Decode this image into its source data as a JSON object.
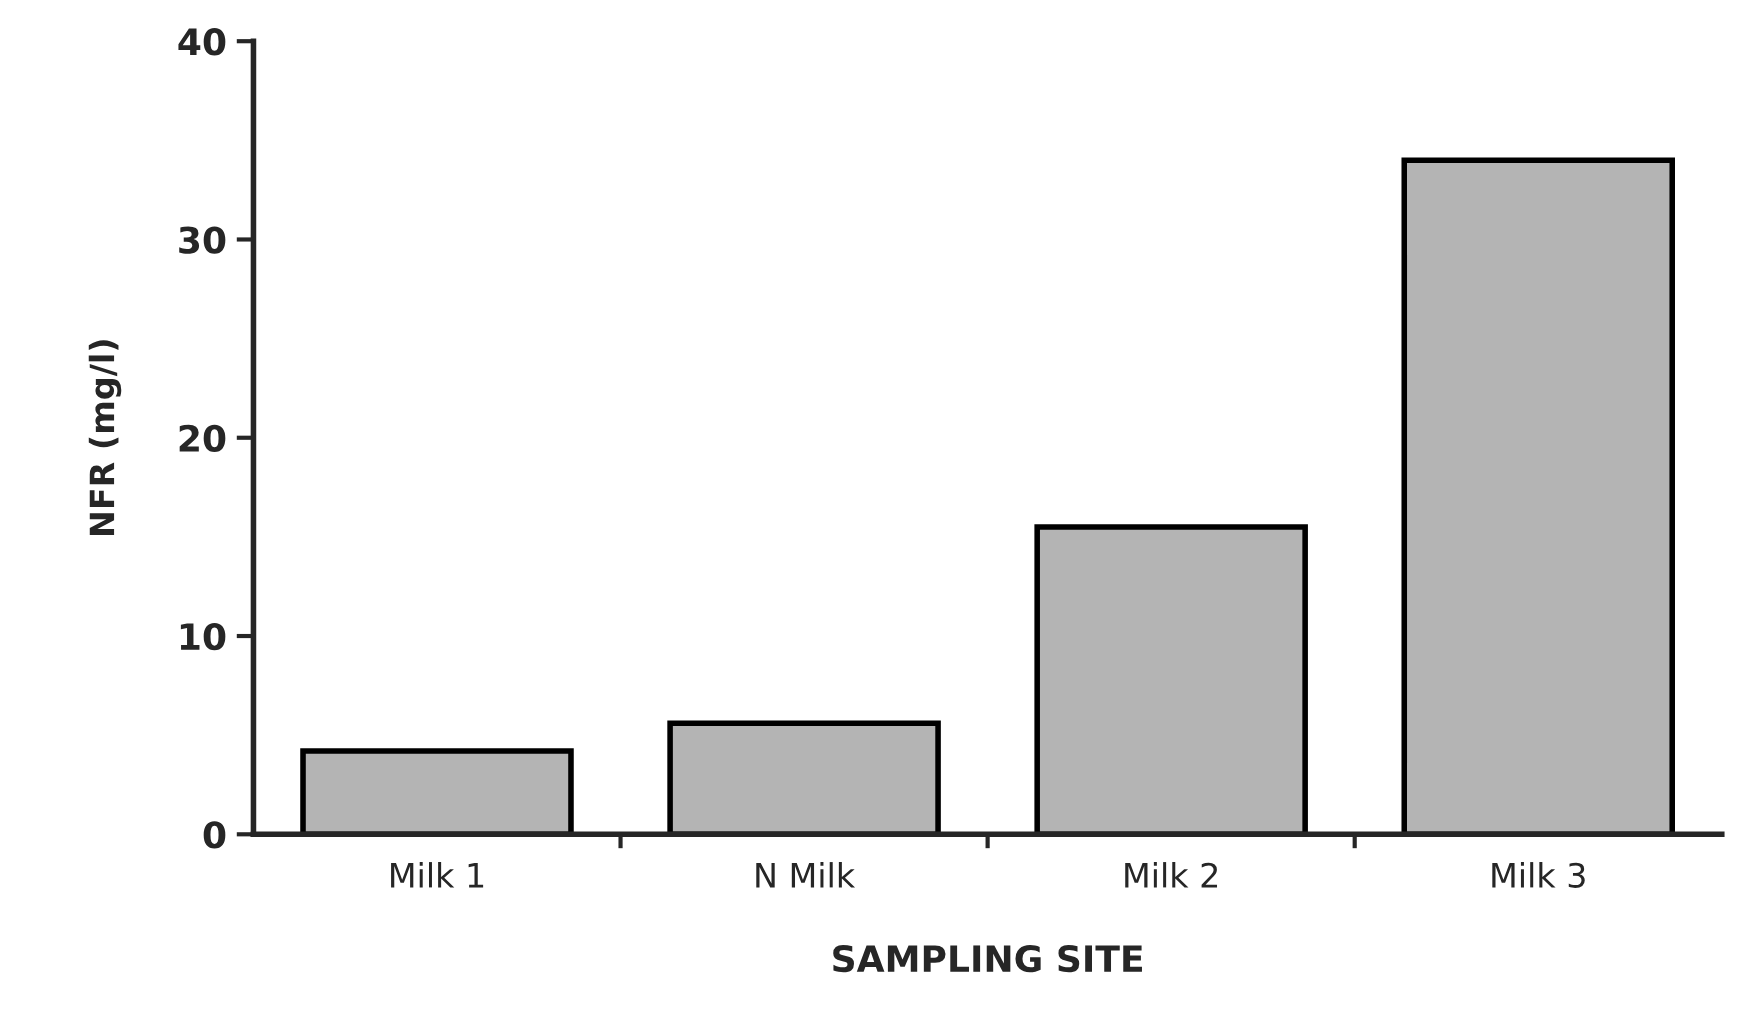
{
  "chart_data": {
    "type": "bar",
    "xlabel": "SAMPLING SITE",
    "ylabel": "NFR (mg/l)",
    "categories": [
      "Milk 1",
      "N Milk",
      "Milk 2",
      "Milk 3"
    ],
    "values": [
      4.2,
      5.6,
      15.5,
      34.0
    ],
    "color": "#b4b4b4",
    "ylim": [
      0,
      40
    ],
    "yticks": [
      0,
      10,
      20,
      30,
      40
    ],
    "grid": false,
    "legend": false
  }
}
